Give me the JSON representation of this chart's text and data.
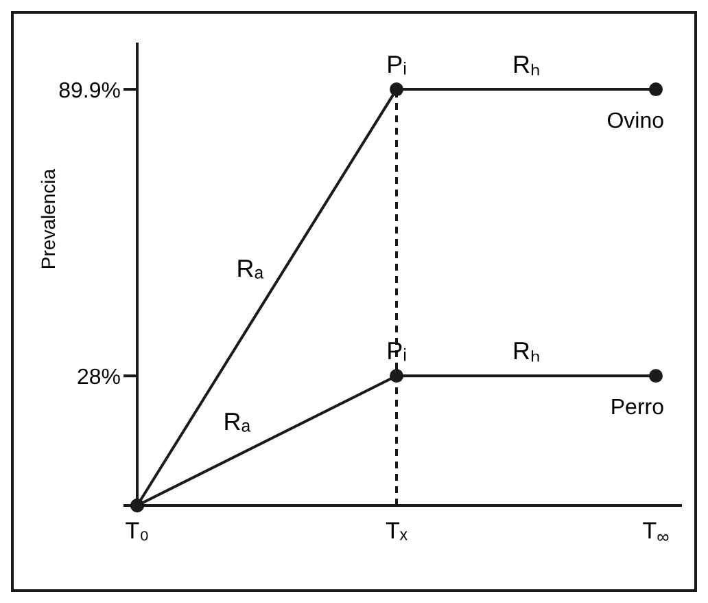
{
  "chart_data": {
    "type": "line",
    "ylabel": "Prevalencia",
    "categories": [
      "T₀",
      "Tₓ",
      "T$_{∞}$"
    ],
    "ylim": [
      0,
      100
    ],
    "yticks": [
      {
        "value": 0,
        "label": null
      },
      {
        "value": 28,
        "label": "28%"
      },
      {
        "value": 89.9,
        "label": "89.9%"
      }
    ],
    "series": [
      {
        "name": "Ovino",
        "color": "#1a1a1a",
        "values": [
          0,
          89.9,
          89.9
        ]
      },
      {
        "name": "Perro",
        "color": "#1a1a1a",
        "values": [
          0,
          28,
          28
        ]
      }
    ],
    "marker": "circle",
    "line_style": "solid",
    "grid": false,
    "ref_lines": [
      {
        "axis": "x",
        "value": "Tₓ",
        "line_style": "dashed",
        "color": "#1a1a1a"
      }
    ],
    "annotations": [
      {
        "text": "Pᵢ",
        "x": "Tₓ",
        "y": 89.9
      },
      {
        "text": "Rₕ",
        "y": 89.9
      },
      "Rₐ",
      {
        "text": "Pᵢ",
        "x": "Tₓ",
        "y": 28
      },
      {
        "text": "Rₕ",
        "y": 28
      },
      "Rₐ"
    ]
  }
}
